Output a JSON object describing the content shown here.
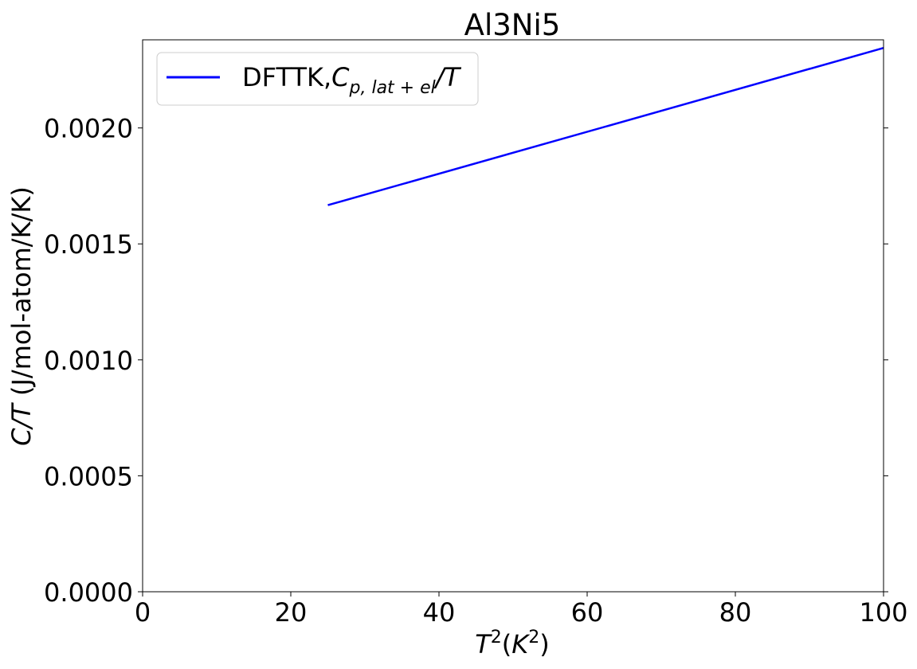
{
  "chart_data": {
    "type": "line",
    "title": "Al3Ni5",
    "xlabel": {
      "base": "T",
      "sup1": "2",
      "open": "(",
      "kbase": "K",
      "sup2": "2",
      "close": ")"
    },
    "ylabel": {
      "italic": "C/T",
      "rest": " (J/mol-atom/K/K)"
    },
    "xlim": [
      0,
      100
    ],
    "ylim": [
      0,
      0.00238
    ],
    "xticks": [
      0,
      20,
      40,
      60,
      80,
      100
    ],
    "xtick_labels": [
      "0",
      "20",
      "40",
      "60",
      "80",
      "100"
    ],
    "yticks": [
      0,
      0.0005,
      0.001,
      0.0015,
      0.002
    ],
    "ytick_labels": [
      "0.0000",
      "0.0005",
      "0.0010",
      "0.0015",
      "0.0020"
    ],
    "grid": false,
    "legend_position": "top-left",
    "series": [
      {
        "name": "DFTTK,Cp,lat+el/T",
        "legend": {
          "prefix": "DFTTK,",
          "c": "C",
          "sub": "p, lat + el",
          "suffix": "/T"
        },
        "color": "#0000ff",
        "x": [
          25,
          100
        ],
        "y": [
          0.001667,
          0.002345
        ]
      }
    ]
  }
}
